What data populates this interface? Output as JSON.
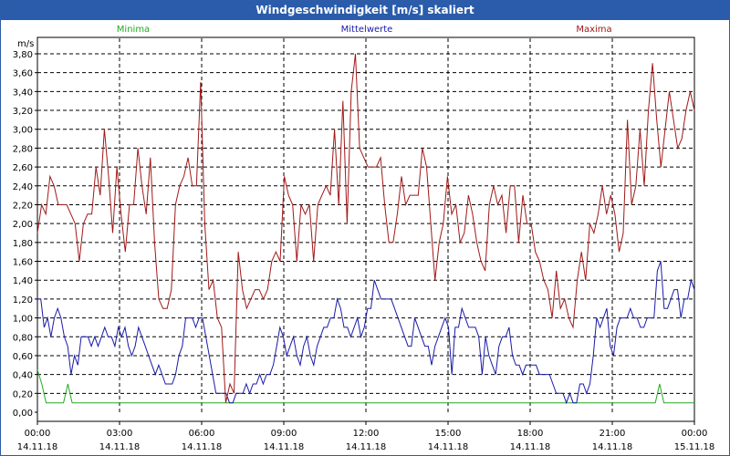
{
  "chart_data": {
    "type": "line",
    "title": "Windgeschwindigkeit [m/s] skaliert",
    "ylabel": "m/s",
    "ylim": [
      0,
      4.0
    ],
    "yticks": [
      "0,00",
      "0,20",
      "0,40",
      "0,60",
      "0,80",
      "1,00",
      "1,20",
      "1,40",
      "1,60",
      "1,80",
      "2,00",
      "2,20",
      "2,40",
      "2,60",
      "2,80",
      "3,00",
      "3,20",
      "3,40",
      "3,60",
      "3,80"
    ],
    "xlim": [
      0,
      24
    ],
    "xticks": [
      {
        "time": "00:00",
        "date": "14.11.18"
      },
      {
        "time": "03:00",
        "date": "14.11.18"
      },
      {
        "time": "06:00",
        "date": "14.11.18"
      },
      {
        "time": "09:00",
        "date": "14.11.18"
      },
      {
        "time": "12:00",
        "date": "14.11.18"
      },
      {
        "time": "15:00",
        "date": "14.11.18"
      },
      {
        "time": "18:00",
        "date": "14.11.18"
      },
      {
        "time": "21:00",
        "date": "14.11.18"
      },
      {
        "time": "00:00",
        "date": "15.11.18"
      }
    ],
    "grid": true,
    "series": [
      {
        "name": "Minima",
        "color": "#22aa22",
        "values": [
          0.45,
          0.3,
          0.1,
          0.1,
          0.1,
          0.1,
          0.1,
          0.3,
          0.1,
          0.1,
          0.1,
          0.1,
          0.1,
          0.1,
          0.1,
          0.1,
          0.1,
          0.1,
          0.1,
          0.1,
          0.1,
          0.1,
          0.1,
          0.1,
          0.1,
          0.1,
          0.1,
          0.1,
          0.1,
          0.1,
          0.1,
          0.1,
          0.1,
          0.1,
          0.1,
          0.1,
          0.1,
          0.1,
          0.1,
          0.1,
          0.1,
          0.1,
          0.1,
          0.1,
          0.1,
          0.1,
          0.1,
          0.1,
          0.1,
          0.1,
          0.1,
          0.1,
          0.1,
          0.1,
          0.1,
          0.1,
          0.1,
          0.1,
          0.1,
          0.1,
          0.1,
          0.1,
          0.1,
          0.1,
          0.1,
          0.1,
          0.1,
          0.1,
          0.1,
          0.1,
          0.1,
          0.1,
          0.1,
          0.1,
          0.1,
          0.1,
          0.1,
          0.1,
          0.1,
          0.1,
          0.1,
          0.1,
          0.1,
          0.1,
          0.1,
          0.1,
          0.1,
          0.1,
          0.1,
          0.1,
          0.1,
          0.1,
          0.1,
          0.1,
          0.1,
          0.1,
          0.1,
          0.1,
          0.1,
          0.1,
          0.1,
          0.1,
          0.1,
          0.1,
          0.1,
          0.1,
          0.1,
          0.1,
          0.1,
          0.1,
          0.1,
          0.1,
          0.1,
          0.1,
          0.1,
          0.1,
          0.1,
          0.1,
          0.1,
          0.1,
          0.1,
          0.1,
          0.1,
          0.1,
          0.1,
          0.1,
          0.1,
          0.1,
          0.1,
          0.1,
          0.1,
          0.1,
          0.1,
          0.1,
          0.1,
          0.1,
          0.1,
          0.1,
          0.1,
          0.1,
          0.1,
          0.1,
          0.1,
          0.3,
          0.1,
          0.1,
          0.1,
          0.1,
          0.1,
          0.1,
          0.1,
          0.1
        ]
      },
      {
        "name": "Mittelwerte",
        "color": "#1a1aa8",
        "values": [
          1.2,
          1.2,
          0.9,
          1.0,
          0.8,
          1.0,
          1.1,
          1.0,
          0.8,
          0.7,
          0.4,
          0.6,
          0.5,
          0.8,
          0.8,
          0.8,
          0.7,
          0.8,
          0.7,
          0.8,
          0.9,
          0.8,
          0.8,
          0.7,
          0.9,
          0.8,
          0.9,
          0.7,
          0.6,
          0.7,
          0.9,
          0.8,
          0.7,
          0.6,
          0.5,
          0.4,
          0.5,
          0.4,
          0.3,
          0.3,
          0.3,
          0.4,
          0.6,
          0.7,
          1.0,
          1.0,
          1.0,
          0.9,
          1.0,
          1.0,
          0.8,
          0.6,
          0.4,
          0.2,
          0.2,
          0.2,
          0.2,
          0.1,
          0.1,
          0.2,
          0.2,
          0.2,
          0.3,
          0.2,
          0.3,
          0.3,
          0.4,
          0.3,
          0.4,
          0.4,
          0.5,
          0.7,
          0.9,
          0.8,
          0.6,
          0.7,
          0.8,
          0.6,
          0.5,
          0.7,
          0.8,
          0.6,
          0.5,
          0.7,
          0.8,
          0.9,
          0.9,
          1.0,
          1.0,
          1.2,
          1.1,
          0.9,
          0.9,
          0.8,
          0.9,
          1.0,
          0.8,
          0.9,
          1.1,
          1.1,
          1.4,
          1.3,
          1.2,
          1.2,
          1.2,
          1.2,
          1.1,
          1.0,
          0.9,
          0.8,
          0.7,
          0.7,
          1.0,
          0.9,
          0.8,
          0.7,
          0.7,
          0.5,
          0.7,
          0.8,
          0.9,
          1.0,
          0.9,
          0.4,
          0.9,
          0.9,
          1.1,
          1.0,
          0.9,
          0.9,
          0.9,
          0.8,
          0.4,
          0.8,
          0.6,
          0.5,
          0.4,
          0.7,
          0.8,
          0.8,
          0.9,
          0.6,
          0.5,
          0.5,
          0.4,
          0.5,
          0.5,
          0.5,
          0.5,
          0.4,
          0.4,
          0.4,
          0.4,
          0.3,
          0.2,
          0.2,
          0.2,
          0.1,
          0.2,
          0.1,
          0.1,
          0.3,
          0.3,
          0.2,
          0.3,
          0.6,
          1.0,
          0.9,
          1.0,
          1.1,
          0.7,
          0.6,
          0.9,
          1.0,
          1.0,
          1.0,
          1.1,
          1.0,
          1.0,
          0.9,
          0.9,
          1.0,
          1.0,
          1.0,
          1.5,
          1.6,
          1.1,
          1.1,
          1.2,
          1.3,
          1.3,
          1.0,
          1.2,
          1.2,
          1.4,
          1.3
        ]
      },
      {
        "name": "Maxima",
        "color": "#a01818",
        "values": [
          1.9,
          2.2,
          2.1,
          2.5,
          2.4,
          2.2,
          2.2,
          2.2,
          2.1,
          2.0,
          1.6,
          2.0,
          2.1,
          2.1,
          2.6,
          2.3,
          3.0,
          2.5,
          1.9,
          2.6,
          2.1,
          1.7,
          2.2,
          2.2,
          2.8,
          2.4,
          2.1,
          2.7,
          1.8,
          1.2,
          1.1,
          1.1,
          1.3,
          2.2,
          2.4,
          2.5,
          2.7,
          2.4,
          2.4,
          3.5,
          2.0,
          1.3,
          1.4,
          1.0,
          0.9,
          0.1,
          0.3,
          0.2,
          1.7,
          1.3,
          1.1,
          1.2,
          1.3,
          1.3,
          1.2,
          1.3,
          1.6,
          1.7,
          1.6,
          2.5,
          2.3,
          2.2,
          1.6,
          2.2,
          2.1,
          2.2,
          1.6,
          2.2,
          2.3,
          2.4,
          2.3,
          3.0,
          2.2,
          3.3,
          2.0,
          3.4,
          3.8,
          2.8,
          2.7,
          2.6,
          2.6,
          2.6,
          2.7,
          2.2,
          1.8,
          1.8,
          2.1,
          2.5,
          2.2,
          2.3,
          2.3,
          2.3,
          2.8,
          2.6,
          2.0,
          1.4,
          1.8,
          2.0,
          2.5,
          2.1,
          2.2,
          1.8,
          1.9,
          2.3,
          2.1,
          1.8,
          1.6,
          1.5,
          2.2,
          2.4,
          2.2,
          2.3,
          1.9,
          2.4,
          2.4,
          1.8,
          2.3,
          2.0,
          2.0,
          1.7,
          1.6,
          1.4,
          1.3,
          1.0,
          1.5,
          1.1,
          1.2,
          1.0,
          0.9,
          1.4,
          1.7,
          1.4,
          2.0,
          1.9,
          2.1,
          2.4,
          2.1,
          2.3,
          2.1,
          1.7,
          1.9,
          3.1,
          2.2,
          2.4,
          3.0,
          2.4,
          3.2,
          3.7,
          3.1,
          2.6,
          3.0,
          3.4,
          3.1,
          2.8,
          2.9,
          3.2,
          3.4,
          3.2
        ]
      }
    ]
  }
}
